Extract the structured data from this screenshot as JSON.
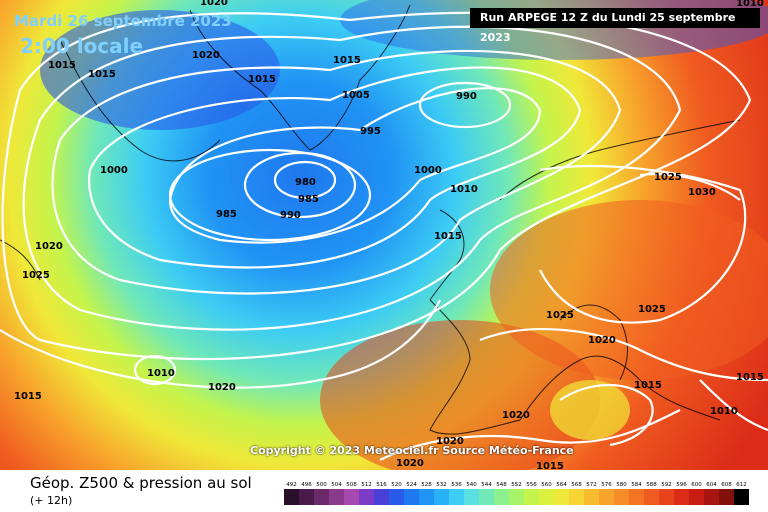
{
  "header": {
    "date": "Mardi 26 septembre 2023",
    "local_time": "2:00 locale",
    "run": "Run ARPEGE 12 Z du Lundi 25 septembre 2023"
  },
  "copyright": "Copyright © 2023 Meteociel.fr Source Météo-France",
  "legend": {
    "title": "Géop. Z500 & pression au sol",
    "lead_time": "(+ 12h)",
    "scale_values": [
      "492",
      "496",
      "500",
      "504",
      "508",
      "512",
      "516",
      "520",
      "524",
      "528",
      "532",
      "536",
      "540",
      "544",
      "548",
      "552",
      "556",
      "560",
      "564",
      "568",
      "572",
      "576",
      "580",
      "584",
      "588",
      "592",
      "596",
      "600",
      "604",
      "608",
      "612"
    ],
    "scale_colors": [
      "#2a0f2a",
      "#4a1a4a",
      "#6a2a6a",
      "#8a3a8a",
      "#a64ab0",
      "#7d3cc8",
      "#4a40d8",
      "#2a5ae8",
      "#1f78f0",
      "#2094f4",
      "#28b0f8",
      "#3cccf4",
      "#5ae0e0",
      "#70e8b8",
      "#8cf090",
      "#a8f468",
      "#c4f44c",
      "#dcf040",
      "#f0e838",
      "#f8d434",
      "#f8bc30",
      "#f8a42c",
      "#f88c28",
      "#f47424",
      "#f05c20",
      "#e8441c",
      "#dc2c18",
      "#c81c14",
      "#a81410",
      "#84100c",
      "#000000"
    ]
  },
  "map": {
    "isobar_color": "#ffffff",
    "labels": [
      {
        "v": "1020"
      },
      {
        "v": "1015"
      },
      {
        "v": "1015"
      },
      {
        "v": "1020"
      },
      {
        "v": "1015"
      },
      {
        "v": "1015"
      },
      {
        "v": "1005"
      },
      {
        "v": "990"
      },
      {
        "v": "995"
      },
      {
        "v": "1000"
      },
      {
        "v": "980"
      },
      {
        "v": "985"
      },
      {
        "v": "985"
      },
      {
        "v": "990"
      },
      {
        "v": "1000"
      },
      {
        "v": "1010"
      },
      {
        "v": "1015"
      },
      {
        "v": "1025"
      },
      {
        "v": "1030"
      },
      {
        "v": "1020"
      },
      {
        "v": "1025"
      },
      {
        "v": "1025"
      },
      {
        "v": "1025"
      },
      {
        "v": "1020"
      },
      {
        "v": "1010"
      },
      {
        "v": "1020"
      },
      {
        "v": "1015"
      },
      {
        "v": "1015"
      },
      {
        "v": "1015"
      },
      {
        "v": "1010"
      },
      {
        "v": "1020"
      },
      {
        "v": "1020"
      },
      {
        "v": "1020"
      },
      {
        "v": "1015"
      },
      {
        "v": "1010"
      }
    ]
  }
}
